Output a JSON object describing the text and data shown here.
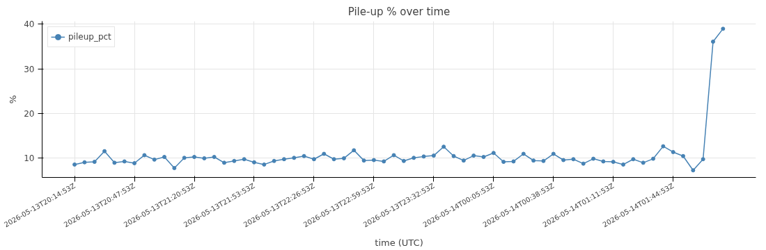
{
  "chart_data": {
    "type": "line",
    "title": "Pile-up % over time",
    "xlabel": "time (UTC)",
    "ylabel": "%",
    "x": [
      "2026-05-13T20:14:53",
      "2026-05-13T20:20:23",
      "2026-05-13T20:25:53",
      "2026-05-13T20:31:23",
      "2026-05-13T20:36:53",
      "2026-05-13T20:42:23",
      "2026-05-13T20:47:53",
      "2026-05-13T20:53:23",
      "2026-05-13T20:58:53",
      "2026-05-13T21:04:23",
      "2026-05-13T21:09:53",
      "2026-05-13T21:15:23",
      "2026-05-13T21:20:53",
      "2026-05-13T21:26:23",
      "2026-05-13T21:31:53",
      "2026-05-13T21:37:23",
      "2026-05-13T21:42:53",
      "2026-05-13T21:48:23",
      "2026-05-13T21:53:53",
      "2026-05-13T21:59:23",
      "2026-05-13T22:04:53",
      "2026-05-13T22:10:23",
      "2026-05-13T22:15:53",
      "2026-05-13T22:21:23",
      "2026-05-13T22:26:53",
      "2026-05-13T22:32:23",
      "2026-05-13T22:37:53",
      "2026-05-13T22:43:23",
      "2026-05-13T22:48:53",
      "2026-05-13T22:54:23",
      "2026-05-13T22:59:53",
      "2026-05-13T23:05:23",
      "2026-05-13T23:10:53",
      "2026-05-13T23:16:23",
      "2026-05-13T23:21:53",
      "2026-05-13T23:27:23",
      "2026-05-13T23:32:53",
      "2026-05-13T23:38:23",
      "2026-05-13T23:43:53",
      "2026-05-13T23:49:23",
      "2026-05-13T23:54:53",
      "2026-05-14T00:00:23",
      "2026-05-14T00:05:53",
      "2026-05-14T00:11:23",
      "2026-05-14T00:16:53",
      "2026-05-14T00:22:23",
      "2026-05-14T00:27:53",
      "2026-05-14T00:33:23",
      "2026-05-14T00:38:53",
      "2026-05-14T00:44:23",
      "2026-05-14T00:49:53",
      "2026-05-14T00:55:23",
      "2026-05-14T01:00:53",
      "2026-05-14T01:06:23",
      "2026-05-14T01:11:53",
      "2026-05-14T01:17:23",
      "2026-05-14T01:22:53",
      "2026-05-14T01:28:23",
      "2026-05-14T01:33:53",
      "2026-05-14T01:39:23",
      "2026-05-14T01:44:53",
      "2026-05-14T01:50:23",
      "2026-05-14T01:55:53",
      "2026-05-14T02:01:23",
      "2026-05-14T02:06:53",
      "2026-05-14T02:12:23"
    ],
    "series": [
      {
        "name": "pileup_pct",
        "color": "#4682b4",
        "values": [
          8.5,
          9.0,
          9.1,
          11.5,
          8.9,
          9.2,
          8.8,
          10.6,
          9.6,
          10.2,
          7.7,
          10.0,
          10.2,
          9.9,
          10.2,
          8.9,
          9.3,
          9.7,
          9.0,
          8.5,
          9.3,
          9.7,
          10.0,
          10.4,
          9.7,
          10.9,
          9.7,
          9.9,
          11.7,
          9.4,
          9.5,
          9.2,
          10.6,
          9.3,
          10.0,
          10.3,
          10.5,
          12.5,
          10.4,
          9.4,
          10.5,
          10.2,
          11.1,
          9.1,
          9.2,
          10.9,
          9.4,
          9.3,
          10.9,
          9.5,
          9.7,
          8.7,
          9.8,
          9.2,
          9.1,
          8.5,
          9.7,
          8.9,
          9.8,
          12.6,
          11.3,
          10.4,
          7.2,
          9.7,
          36.1,
          39.0
        ]
      }
    ],
    "xlim": [
      "2026-05-13T19:57:00",
      "2026-05-14T02:30:30"
    ],
    "xticks": [
      {
        "value": "2026-05-13T20:14:53",
        "label": "2026-05-13T20:14:53Z"
      },
      {
        "value": "2026-05-13T20:47:53",
        "label": "2026-05-13T20:47:53Z"
      },
      {
        "value": "2026-05-13T21:20:53",
        "label": "2026-05-13T21:20:53Z"
      },
      {
        "value": "2026-05-13T21:53:53",
        "label": "2026-05-13T21:53:53Z"
      },
      {
        "value": "2026-05-13T22:26:53",
        "label": "2026-05-13T22:26:53Z"
      },
      {
        "value": "2026-05-13T22:59:53",
        "label": "2026-05-13T22:59:53Z"
      },
      {
        "value": "2026-05-13T23:32:53",
        "label": "2026-05-13T23:32:53Z"
      },
      {
        "value": "2026-05-14T00:05:53",
        "label": "2026-05-14T00:05:53Z"
      },
      {
        "value": "2026-05-14T00:38:53",
        "label": "2026-05-14T00:38:53Z"
      },
      {
        "value": "2026-05-14T01:11:53",
        "label": "2026-05-14T01:11:53Z"
      },
      {
        "value": "2026-05-14T01:44:53",
        "label": "2026-05-14T01:44:53Z"
      }
    ],
    "ylim": [
      5.6,
      40.7
    ],
    "yticks": [
      10,
      20,
      30,
      40
    ],
    "grid": true,
    "legend": "top left",
    "marker": "circle",
    "line_style": "solid"
  }
}
